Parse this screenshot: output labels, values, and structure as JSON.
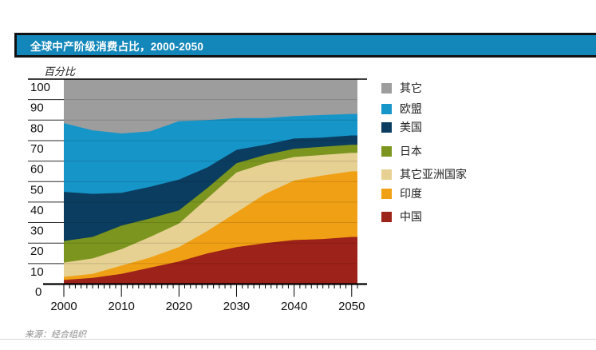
{
  "title_bar": {
    "text": "全球中产阶级消费占比，2000-2050",
    "bg_color": "#1487ba",
    "border_color": "#111111"
  },
  "axis": {
    "y_title": "百分比",
    "y_tick_labels": [
      0,
      10,
      20,
      30,
      40,
      50,
      60,
      70,
      80,
      90,
      100
    ],
    "x_tick_labels": [
      2000,
      2010,
      2020,
      2030,
      2040,
      2050
    ]
  },
  "source": {
    "text": "来源：经合组织"
  },
  "legend": {
    "items": [
      {
        "label": "其它",
        "color": "#9d9d9d",
        "gap_before": 0
      },
      {
        "label": "欧盟",
        "color": "#1695c8",
        "gap_before": 6
      },
      {
        "label": "美国",
        "color": "#0b3d60",
        "gap_before": 3
      },
      {
        "label": "日本",
        "color": "#7b951f",
        "gap_before": 10
      },
      {
        "label": "其它亚洲国家",
        "color": "#e6d192",
        "gap_before": 9
      },
      {
        "label": "印度",
        "color": "#f0a014",
        "gap_before": 4
      },
      {
        "label": "中国",
        "color": "#9d2219",
        "gap_before": 9
      }
    ]
  },
  "chart_data": {
    "type": "area",
    "stacked": true,
    "title": "全球中产阶级消费占比，2000-2050",
    "ylabel": "百分比",
    "unit": "percent",
    "ylim": [
      0,
      100
    ],
    "xlim": [
      2000,
      2051
    ],
    "grid": "faint horizontal lines every 10 over areas",
    "legend_position": "right, top-of-stack first",
    "x": [
      2000,
      2005,
      2010,
      2015,
      2020,
      2025,
      2030,
      2035,
      2040,
      2045,
      2050
    ],
    "series": [
      {
        "name": "中国",
        "color": "#9d2219",
        "values": [
          2,
          3,
          5,
          8,
          11,
          15,
          18,
          20,
          21.5,
          22,
          23
        ]
      },
      {
        "name": "印度",
        "color": "#f0a014",
        "values": [
          1.5,
          2,
          4,
          5,
          7,
          11,
          17,
          24,
          29,
          31,
          32
        ]
      },
      {
        "name": "其它亚洲国家",
        "color": "#e6d192",
        "values": [
          7,
          7.5,
          8,
          10,
          11.5,
          16,
          19.5,
          15,
          11.5,
          10,
          9
        ]
      },
      {
        "name": "日本",
        "color": "#7b951f",
        "values": [
          10.5,
          10.5,
          11.5,
          9,
          6.5,
          5,
          4.5,
          4,
          4,
          4,
          4
        ]
      },
      {
        "name": "美国",
        "color": "#0b3d60",
        "values": [
          24,
          21,
          16,
          15.5,
          15,
          10,
          6.5,
          5,
          5,
          4.5,
          4.5
        ]
      },
      {
        "name": "欧盟",
        "color": "#1695c8",
        "values": [
          33.5,
          31,
          29,
          27,
          28.5,
          23,
          15.5,
          13,
          11,
          11,
          10.5
        ]
      },
      {
        "name": "其它",
        "color": "#9d9d9d",
        "values": [
          21.5,
          25,
          26.5,
          25.5,
          20.5,
          20,
          19,
          19,
          18,
          17.5,
          17
        ]
      }
    ]
  }
}
